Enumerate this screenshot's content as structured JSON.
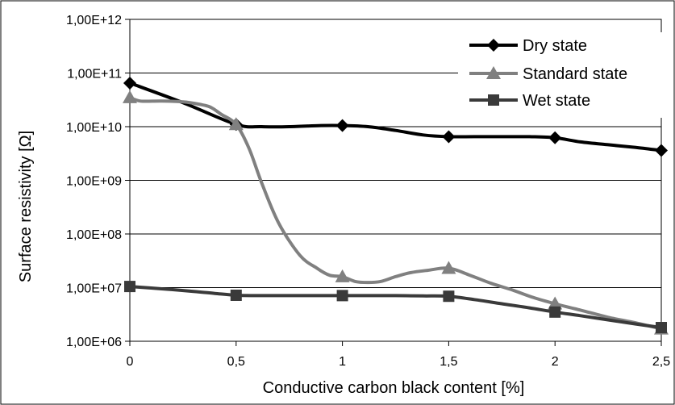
{
  "chart_data": {
    "type": "line",
    "title": "",
    "xlabel": "Conductive carbon black content [%]",
    "ylabel": "Surface resistivity  [Ω]",
    "x_ticks": [
      "0",
      "0,5",
      "1",
      "1,5",
      "2",
      "2,5"
    ],
    "y_ticks": [
      "1,00E+06",
      "1,00E+07",
      "1,00E+08",
      "1,00E+09",
      "1,00E+10",
      "1,00E+11",
      "1,00E+12"
    ],
    "xlim": [
      0,
      2.5
    ],
    "ylim": [
      1000000,
      1000000000000
    ],
    "y_scale": "log",
    "grid": "horizontal",
    "legend_position": "top-right",
    "series": [
      {
        "name": "Dry state",
        "marker": "diamond",
        "color": "#000000",
        "markers_x": [
          0,
          0.5,
          1,
          1.5,
          2,
          2.5
        ],
        "markers_y": [
          65000000000,
          11000000000,
          10500000000,
          6500000000,
          6200000000,
          3600000000
        ],
        "curve_x": [
          0,
          0.25,
          0.5,
          0.62,
          0.75,
          0.9,
          1,
          1.12,
          1.25,
          1.38,
          1.5,
          1.62,
          1.75,
          1.88,
          2,
          2.12,
          2.25,
          2.38,
          2.5
        ],
        "curve_y": [
          65000000000,
          28000000000,
          11000000000,
          10000000000,
          10000000000,
          10500000000,
          10500000000,
          10000000000,
          8500000000,
          7000000000,
          6500000000,
          6500000000,
          6500000000,
          6500000000,
          6200000000,
          5200000000,
          4600000000,
          4100000000,
          3600000000
        ]
      },
      {
        "name": "Standard state",
        "marker": "triangle",
        "color": "#808080",
        "markers_x": [
          0,
          0.5,
          1,
          1.5,
          2,
          2.5
        ],
        "markers_y": [
          35000000000,
          11000000000,
          16000000,
          23000000,
          5000000,
          1700000
        ],
        "curve_x": [
          0,
          0.05,
          0.15,
          0.25,
          0.33,
          0.38,
          0.43,
          0.5,
          0.56,
          0.62,
          0.7,
          0.8,
          0.88,
          0.94,
          1,
          1.06,
          1.12,
          1.18,
          1.25,
          1.32,
          1.4,
          1.5,
          1.6,
          1.7,
          1.8,
          1.9,
          2,
          2.12,
          2.25,
          2.38,
          2.5
        ],
        "curve_y": [
          35000000000,
          30000000000,
          30000000000,
          29000000000,
          26000000000,
          23000000000,
          17000000000,
          11000000000,
          4000000000,
          900000000,
          160000000,
          40000000,
          23000000,
          17000000,
          16000000,
          13000000,
          12500000,
          13000000,
          16000000,
          19000000,
          21000000,
          23000000,
          17000000,
          12000000,
          9000000,
          6500000,
          5000000,
          3800000,
          2800000,
          2200000,
          1700000
        ]
      },
      {
        "name": "Wet state",
        "marker": "square",
        "color": "#3a3a3a",
        "markers_x": [
          0,
          0.5,
          1,
          1.5,
          2,
          2.5
        ],
        "markers_y": [
          10500000,
          7200000,
          7100000,
          6900000,
          3500000,
          1800000
        ],
        "curve_x": [
          0,
          0.15,
          0.3,
          0.4,
          0.5,
          0.6,
          0.75,
          0.9,
          1,
          1.12,
          1.25,
          1.38,
          1.5,
          1.62,
          1.75,
          1.88,
          2,
          2.12,
          2.25,
          2.38,
          2.5
        ],
        "curve_y": [
          10500000,
          9500000,
          8500000,
          7800000,
          7200000,
          7100000,
          7100000,
          7100000,
          7100000,
          7100000,
          7100000,
          7000000,
          6900000,
          6000000,
          5000000,
          4200000,
          3500000,
          3000000,
          2500000,
          2100000,
          1800000
        ]
      }
    ]
  }
}
